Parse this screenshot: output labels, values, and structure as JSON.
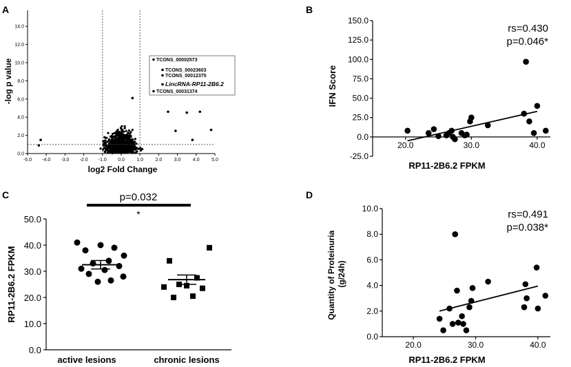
{
  "chart_data": [
    {
      "panel": "A",
      "type": "scatter",
      "subtype": "volcano",
      "xlabel": "log2 Fold Change",
      "ylabel": "-log p value",
      "xlim": [
        -5.0,
        5.0
      ],
      "ylim": [
        0,
        15
      ],
      "x_ticks": [
        "-5.0",
        "-4.0",
        "-3.0",
        "-2.0",
        "-1.0",
        "0.0",
        "1.0",
        "2.0",
        "3.0",
        "4.0",
        "5.0"
      ],
      "y_ticks": [
        "0.0",
        "2.0",
        "4.0",
        "6.0",
        "8.0",
        "10.0",
        "12.0",
        "14.0"
      ],
      "thresholds": {
        "x": [
          -1.0,
          1.0
        ],
        "y": 1.0
      },
      "legend": [
        {
          "label": "TCONS_00002573",
          "highlight": false
        },
        {
          "label": "TCONS_00023603",
          "highlight": false
        },
        {
          "label": "TCONS_00012375",
          "highlight": false
        },
        {
          "label": "LincRNA-RP11-2B6.2",
          "highlight": true
        },
        {
          "label": "TCONS_00031374",
          "highlight": false
        }
      ],
      "highlight_color": "#e8361c",
      "labeled_points": [
        {
          "x": 0.6,
          "y": 6.1
        },
        {
          "x": -4.3,
          "y": 1.5
        },
        {
          "x": -4.4,
          "y": 0.9
        },
        {
          "x": 4.8,
          "y": 2.6
        },
        {
          "x": 4.2,
          "y": 4.6
        },
        {
          "x": 3.5,
          "y": 4.5
        },
        {
          "x": 2.5,
          "y": 4.6
        },
        {
          "x": 3.8,
          "y": 1.5
        },
        {
          "x": 2.9,
          "y": 2.5
        }
      ],
      "background_points": 800
    },
    {
      "panel": "B",
      "type": "scatter",
      "xlabel": "RP11-2B6.2 FPKM",
      "ylabel": "IFN Score",
      "xlim": [
        15,
        42
      ],
      "ylim": [
        -25,
        150
      ],
      "x_ticks": [
        "20.0",
        "30.0",
        "40.0"
      ],
      "y_ticks": [
        "-25.0",
        "0.0",
        "25.0",
        "50.0",
        "75.0",
        "100.0",
        "125.0",
        "150.0"
      ],
      "annotations": [
        "rs=0.430",
        "p=0.046*"
      ],
      "x": [
        20.3,
        23.5,
        24.3,
        25.0,
        26.2,
        26.6,
        27.0,
        27.2,
        27.5,
        28.5,
        29.0,
        29.3,
        29.8,
        30.0,
        32.5,
        38.0,
        38.3,
        38.8,
        39.5,
        40.0,
        41.3
      ],
      "y": [
        8,
        5,
        10,
        1,
        2,
        5,
        8,
        0,
        -3,
        5,
        2,
        3,
        20,
        25,
        15,
        30,
        97,
        20,
        5,
        40,
        8
      ],
      "fit": {
        "x": [
          20.3,
          40.0
        ],
        "y": [
          -5,
          33
        ]
      }
    },
    {
      "panel": "C",
      "type": "scatter",
      "subtype": "dot-plot",
      "xlabel": "",
      "ylabel": "RP11-2B6.2 FPKM",
      "ylim": [
        0,
        50
      ],
      "y_ticks": [
        "0.0",
        "10.0",
        "20.0",
        "30.0",
        "40.0",
        "50.0"
      ],
      "categories": [
        "active lesions",
        "chronic lesions"
      ],
      "series": [
        {
          "name": "active lesions",
          "marker": "circle",
          "values": [
            41.0,
            40.0,
            39.0,
            38.0,
            36.0,
            34.0,
            33.0,
            32.0,
            31.0,
            30.5,
            29.0,
            28.0,
            26.5,
            26.0
          ],
          "mean": 32.5,
          "sem_low": 30.9,
          "sem_high": 34.1
        },
        {
          "name": "chronic lesions",
          "marker": "square",
          "values": [
            39.0,
            34.0,
            27.5,
            25.0,
            24.5,
            24.0,
            23.5,
            20.5,
            20.0
          ],
          "mean": 26.8,
          "sem_low": 25.0,
          "sem_high": 28.6
        }
      ],
      "annotations": [
        "p=0.032",
        "*"
      ]
    },
    {
      "panel": "D",
      "type": "scatter",
      "xlabel": "RP11-2B6.2 FPKM",
      "ylabel": "Quantity of Proteinuria (g/24h)",
      "xlim": [
        15,
        42
      ],
      "ylim": [
        0,
        10
      ],
      "x_ticks": [
        "20.0",
        "30.0",
        "40.0"
      ],
      "y_ticks": [
        "0.0",
        "2.0",
        "4.0",
        "6.0",
        "8.0",
        "10.0"
      ],
      "annotations": [
        "rs=0.491",
        "p=0.038*"
      ],
      "x": [
        24.2,
        24.8,
        25.8,
        26.3,
        26.7,
        27.0,
        27.2,
        27.8,
        28.0,
        28.5,
        29.0,
        29.3,
        29.5,
        32.0,
        37.8,
        38.0,
        38.2,
        39.8,
        40.0,
        41.2
      ],
      "y": [
        1.4,
        0.5,
        2.2,
        1.0,
        8.0,
        3.6,
        1.1,
        1.6,
        1.0,
        0.5,
        2.3,
        2.8,
        3.8,
        4.3,
        2.3,
        4.1,
        3.0,
        5.4,
        2.2,
        3.2
      ],
      "fit": {
        "x": [
          24.2,
          40.0
        ],
        "y": [
          2.0,
          3.95
        ]
      }
    }
  ]
}
